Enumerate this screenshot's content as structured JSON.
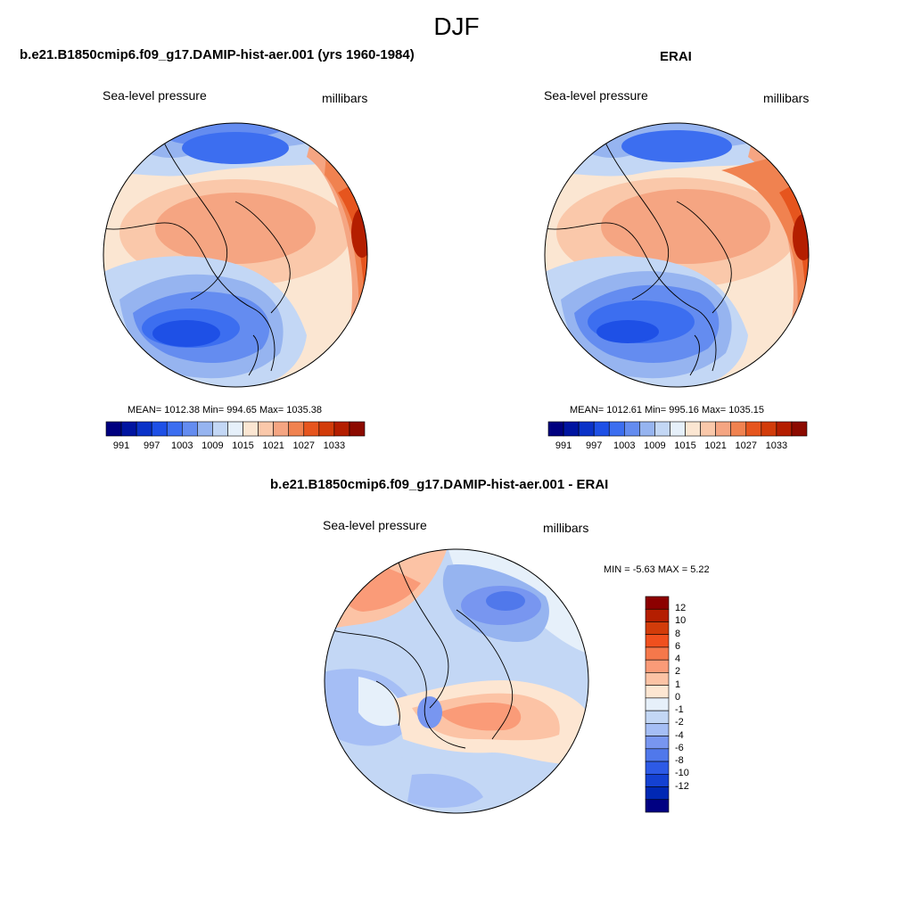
{
  "page": {
    "title": "DJF"
  },
  "panels": [
    {
      "title": "b.e21.B1850cmip6.f09_g17.DAMIP-hist-aer.001 (yrs 1960-1984)",
      "left_label": "Sea-level pressure",
      "right_label": "millibars",
      "stats": "MEAN= 1012.38  Min= 994.65  Max= 1035.38"
    },
    {
      "title": "ERAI",
      "left_label": "Sea-level pressure",
      "right_label": "millibars",
      "stats": "MEAN= 1012.61  Min= 995.16  Max= 1035.15"
    },
    {
      "title": "b.e21.B1850cmip6.f09_g17.DAMIP-hist-aer.001 - ERAI",
      "left_label": "Sea-level pressure",
      "right_label": "millibars",
      "stats": "MIN =  -5.63 MAX =   5.22"
    }
  ],
  "abs_colorbar": {
    "colors": [
      "#00007f",
      "#0014a0",
      "#0a32c8",
      "#1e50e6",
      "#3c6ef0",
      "#648cf0",
      "#96b4f0",
      "#c3d7f5",
      "#e6f0fa",
      "#fbe6d2",
      "#fac8aa",
      "#f5a582",
      "#f08250",
      "#e6551e",
      "#d23c0a",
      "#b41e00",
      "#8c0a00"
    ],
    "labels": [
      "991",
      "997",
      "1003",
      "1009",
      "1015",
      "1021",
      "1027",
      "1033"
    ]
  },
  "diff_colorbar": {
    "colors": [
      "#8c0000",
      "#b41e00",
      "#d23c0a",
      "#f0501e",
      "#f5784b",
      "#fa9b78",
      "#fcc3a5",
      "#fde6d2",
      "#e6f0fa",
      "#c3d7f5",
      "#a5bef5",
      "#7896f0",
      "#5078eb",
      "#2d5ae6",
      "#1441d2",
      "#0028b4",
      "#000082"
    ],
    "labels": [
      "12",
      "10",
      "8",
      "6",
      "4",
      "2",
      "1",
      "0",
      "-1",
      "-2",
      "-4",
      "-6",
      "-8",
      "-10",
      "-12"
    ]
  }
}
